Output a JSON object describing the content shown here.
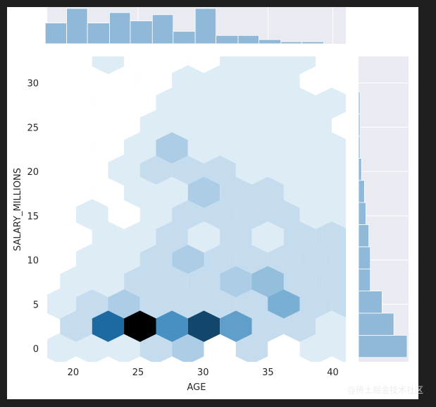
{
  "chart_data": {
    "type": "hexbin",
    "xlabel": "AGE",
    "ylabel": "SALARY_MILLIONS",
    "xlim": [
      18,
      41
    ],
    "ylim": [
      -1.5,
      33
    ],
    "x_ticks": [
      20,
      25,
      30,
      35,
      40
    ],
    "y_ticks": [
      0,
      5,
      10,
      15,
      20,
      25,
      30
    ],
    "grid": true,
    "colors": {
      "background": "#eaeaf2",
      "hex_max": "#000000",
      "hex_high": "#1f77b4",
      "marginal": "#8fb8d9"
    },
    "hex_grid": {
      "x0": 19.0,
      "dx": 2.46,
      "y0": 0.0,
      "dy": 2.52,
      "max_count": 12
    },
    "hexbin": [
      {
        "col": 0,
        "row": 0,
        "count": 1
      },
      {
        "col": 1,
        "row": 0,
        "count": 1
      },
      {
        "col": 2,
        "row": 0,
        "count": 1
      },
      {
        "col": 3,
        "row": 0,
        "count": 2
      },
      {
        "col": 4,
        "row": 0,
        "count": 3
      },
      {
        "col": 6,
        "row": 0,
        "count": 2
      },
      {
        "col": 8,
        "row": 0,
        "count": 1
      },
      {
        "col": 9,
        "row": 0,
        "count": 1
      },
      {
        "col": 10,
        "row": 0,
        "count": 1
      },
      {
        "col": 11,
        "row": 0,
        "count": 1
      },
      {
        "col": 12,
        "row": 0,
        "count": 1
      },
      {
        "col": 14,
        "row": 0,
        "count": 1
      },
      {
        "col": 15,
        "row": 0,
        "count": 1
      },
      {
        "col": 0,
        "row": 2,
        "count": 1
      },
      {
        "col": 1,
        "row": 2,
        "count": 2
      },
      {
        "col": 2,
        "row": 2,
        "count": 3
      },
      {
        "col": 3,
        "row": 2,
        "count": 2
      },
      {
        "col": 4,
        "row": 2,
        "count": 2
      },
      {
        "col": 5,
        "row": 2,
        "count": 2
      },
      {
        "col": 6,
        "row": 2,
        "count": 2
      },
      {
        "col": 7,
        "row": 2,
        "count": 5
      },
      {
        "col": 8,
        "row": 2,
        "count": 2
      },
      {
        "col": 9,
        "row": 2,
        "count": 2
      },
      {
        "col": 10,
        "row": 2,
        "count": 2
      },
      {
        "col": 11,
        "row": 2,
        "count": 3
      },
      {
        "col": 12,
        "row": 2,
        "count": 2
      },
      {
        "col": 13,
        "row": 2,
        "count": 1
      },
      {
        "col": 1,
        "row": 4,
        "count": 1
      },
      {
        "col": 2,
        "row": 4,
        "count": 1
      },
      {
        "col": 3,
        "row": 4,
        "count": 2
      },
      {
        "col": 4,
        "row": 4,
        "count": 3
      },
      {
        "col": 5,
        "row": 4,
        "count": 2
      },
      {
        "col": 6,
        "row": 4,
        "count": 2
      },
      {
        "col": 7,
        "row": 4,
        "count": 2
      },
      {
        "col": 8,
        "row": 4,
        "count": 2
      },
      {
        "col": 9,
        "row": 4,
        "count": 2
      },
      {
        "col": 10,
        "row": 4,
        "count": 1
      },
      {
        "col": 11,
        "row": 4,
        "count": 2
      },
      {
        "col": 12,
        "row": 4,
        "count": 1
      },
      {
        "col": 1,
        "row": 6,
        "count": 1
      },
      {
        "col": 3,
        "row": 6,
        "count": 1
      },
      {
        "col": 4,
        "row": 6,
        "count": 2
      },
      {
        "col": 5,
        "row": 6,
        "count": 2
      },
      {
        "col": 6,
        "row": 6,
        "count": 2
      },
      {
        "col": 7,
        "row": 6,
        "count": 2
      },
      {
        "col": 8,
        "row": 6,
        "count": 1
      },
      {
        "col": 9,
        "row": 6,
        "count": 1
      },
      {
        "col": 10,
        "row": 6,
        "count": 1
      },
      {
        "col": 11,
        "row": 6,
        "count": 1
      },
      {
        "col": 2,
        "row": 8,
        "count": 1
      },
      {
        "col": 3,
        "row": 8,
        "count": 2
      },
      {
        "col": 4,
        "row": 8,
        "count": 2
      },
      {
        "col": 5,
        "row": 8,
        "count": 2
      },
      {
        "col": 6,
        "row": 8,
        "count": 1
      },
      {
        "col": 7,
        "row": 8,
        "count": 1
      },
      {
        "col": 8,
        "row": 8,
        "count": 1
      },
      {
        "col": 9,
        "row": 8,
        "count": 1
      },
      {
        "col": 10,
        "row": 8,
        "count": 1
      },
      {
        "col": 3,
        "row": 10,
        "count": 1
      },
      {
        "col": 4,
        "row": 10,
        "count": 1
      },
      {
        "col": 5,
        "row": 10,
        "count": 1
      },
      {
        "col": 6,
        "row": 10,
        "count": 1
      },
      {
        "col": 7,
        "row": 10,
        "count": 1
      },
      {
        "col": 8,
        "row": 10,
        "count": 1
      },
      {
        "col": 4,
        "row": 12,
        "count": 1
      },
      {
        "col": 5,
        "row": 12,
        "count": 1
      },
      {
        "col": 6,
        "row": 12,
        "count": 1
      },
      {
        "col": 7,
        "row": 12,
        "count": 1
      },
      {
        "col": 0,
        "row": 1,
        "count": 2
      },
      {
        "col": 1,
        "row": 1,
        "count": 9
      },
      {
        "col": 2,
        "row": 1,
        "count": 12
      },
      {
        "col": 3,
        "row": 1,
        "count": 7
      },
      {
        "col": 4,
        "row": 1,
        "count": 10
      },
      {
        "col": 5,
        "row": 1,
        "count": 6
      },
      {
        "col": 6,
        "row": 1,
        "count": 2
      },
      {
        "col": 7,
        "row": 1,
        "count": 2
      },
      {
        "col": 8,
        "row": 1,
        "count": 1
      },
      {
        "col": 9,
        "row": 1,
        "count": 3
      },
      {
        "col": 10,
        "row": 1,
        "count": 1
      },
      {
        "col": 11,
        "row": 1,
        "count": 1
      },
      {
        "col": 14,
        "row": 1,
        "count": 1
      },
      {
        "col": 0,
        "row": 3,
        "count": 1
      },
      {
        "col": 1,
        "row": 3,
        "count": 1
      },
      {
        "col": 2,
        "row": 3,
        "count": 2
      },
      {
        "col": 3,
        "row": 3,
        "count": 2
      },
      {
        "col": 4,
        "row": 3,
        "count": 2
      },
      {
        "col": 5,
        "row": 3,
        "count": 3
      },
      {
        "col": 6,
        "row": 3,
        "count": 4
      },
      {
        "col": 7,
        "row": 3,
        "count": 2
      },
      {
        "col": 8,
        "row": 3,
        "count": 2
      },
      {
        "col": 9,
        "row": 3,
        "count": 1
      },
      {
        "col": 10,
        "row": 3,
        "count": 1
      },
      {
        "col": 11,
        "row": 3,
        "count": 1
      },
      {
        "col": 1,
        "row": 5,
        "count": 1
      },
      {
        "col": 2,
        "row": 5,
        "count": 1
      },
      {
        "col": 3,
        "row": 5,
        "count": 2
      },
      {
        "col": 4,
        "row": 5,
        "count": 1
      },
      {
        "col": 5,
        "row": 5,
        "count": 2
      },
      {
        "col": 6,
        "row": 5,
        "count": 1
      },
      {
        "col": 7,
        "row": 5,
        "count": 2
      },
      {
        "col": 8,
        "row": 5,
        "count": 2
      },
      {
        "col": 9,
        "row": 5,
        "count": 1
      },
      {
        "col": 10,
        "row": 5,
        "count": 1
      },
      {
        "col": 2,
        "row": 7,
        "count": 1
      },
      {
        "col": 3,
        "row": 7,
        "count": 1
      },
      {
        "col": 4,
        "row": 7,
        "count": 3
      },
      {
        "col": 5,
        "row": 7,
        "count": 2
      },
      {
        "col": 6,
        "row": 7,
        "count": 2
      },
      {
        "col": 7,
        "row": 7,
        "count": 1
      },
      {
        "col": 8,
        "row": 7,
        "count": 1
      },
      {
        "col": 9,
        "row": 7,
        "count": 1
      },
      {
        "col": 10,
        "row": 7,
        "count": 1
      },
      {
        "col": 2,
        "row": 9,
        "count": 1
      },
      {
        "col": 3,
        "row": 9,
        "count": 3
      },
      {
        "col": 4,
        "row": 9,
        "count": 1
      },
      {
        "col": 5,
        "row": 9,
        "count": 1
      },
      {
        "col": 6,
        "row": 9,
        "count": 1
      },
      {
        "col": 7,
        "row": 9,
        "count": 1
      },
      {
        "col": 8,
        "row": 9,
        "count": 1
      },
      {
        "col": 3,
        "row": 11,
        "count": 1
      },
      {
        "col": 4,
        "row": 11,
        "count": 1
      },
      {
        "col": 5,
        "row": 11,
        "count": 1
      },
      {
        "col": 6,
        "row": 11,
        "count": 1
      },
      {
        "col": 7,
        "row": 11,
        "count": 1
      },
      {
        "col": 8,
        "row": 11,
        "count": 1
      },
      {
        "col": 11,
        "row": 11,
        "count": 1
      },
      {
        "col": 12,
        "row": 11,
        "count": 1
      },
      {
        "col": 1,
        "row": 13,
        "count": 1
      },
      {
        "col": 5,
        "row": 13,
        "count": 1
      },
      {
        "col": 6,
        "row": 13,
        "count": 1
      },
      {
        "col": 7,
        "row": 13,
        "count": 1
      },
      {
        "col": 9,
        "row": 13,
        "count": 1
      },
      {
        "col": 11,
        "row": 13,
        "count": 1
      },
      {
        "col": 5,
        "row": 15,
        "count": 1
      },
      {
        "col": 6,
        "row": 15,
        "count": 1
      },
      {
        "col": 7,
        "row": 15,
        "count": 1
      },
      {
        "col": 13,
        "row": 15,
        "count": 1
      }
    ],
    "x_marginal": {
      "bin_edges": [
        17.85,
        19.5,
        21.1,
        22.8,
        24.4,
        26.1,
        27.7,
        29.4,
        31.0,
        32.7,
        34.3,
        36.0,
        37.6,
        39.3,
        40.9
      ],
      "counts": [
        10,
        17,
        10,
        15,
        11,
        14,
        6,
        17,
        4,
        4,
        2,
        1,
        1,
        0
      ]
    },
    "y_marginal": {
      "bin_edges": [
        -1.0,
        1.5,
        4.0,
        6.5,
        9.0,
        11.5,
        14.0,
        16.5,
        19.0,
        21.5,
        24.0,
        26.5,
        29.0,
        31.5
      ],
      "counts": [
        33,
        24,
        16,
        8,
        8,
        7,
        5,
        4,
        2,
        1,
        1,
        1,
        0
      ]
    }
  },
  "watermark": "@稀土掘金技术社区"
}
